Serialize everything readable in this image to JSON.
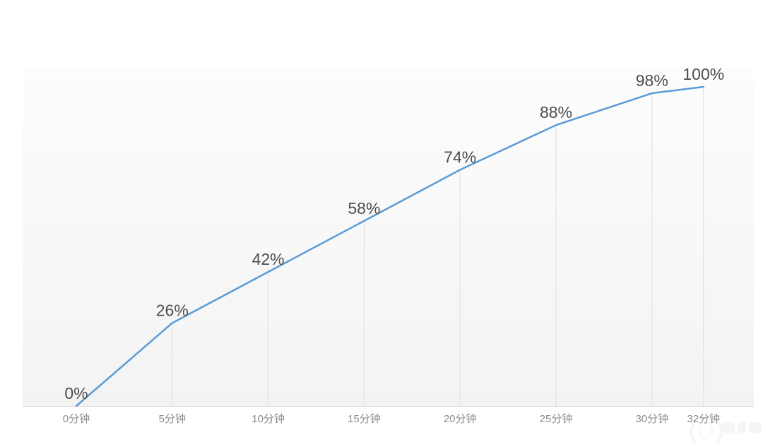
{
  "chart_data": {
    "type": "line",
    "title": "",
    "xlabel": "",
    "ylabel": "",
    "x_minutes": [
      0,
      5,
      10,
      15,
      20,
      25,
      30,
      32
    ],
    "categories": [
      "0分钟",
      "5分钟",
      "10分钟",
      "15分钟",
      "20分钟",
      "25分钟",
      "30分钟",
      "32分钟"
    ],
    "values": [
      0,
      26,
      42,
      58,
      74,
      88,
      98,
      100
    ],
    "point_labels": [
      "0%",
      "26%",
      "42%",
      "58%",
      "74%",
      "88%",
      "98%",
      "100%"
    ],
    "ylim": [
      0,
      100
    ],
    "grid": "vertical-drop-lines-from-points-to-x-axis",
    "legend_position": "none",
    "colors": {
      "line": "#5b9bd5",
      "drop_line": "#dedede",
      "axis_line": "#d9d9d9",
      "point_label": "#4d4d4d",
      "tick_label": "#8c8c8c",
      "plot_bg_top": "#fdfdfd",
      "plot_bg_bottom": "#f3f3f3",
      "page_bg": "#ffffff"
    }
  },
  "watermark": {
    "icon": "circular-logo-watermark",
    "note": "faint illegible logo watermark, bottom-right corner"
  }
}
